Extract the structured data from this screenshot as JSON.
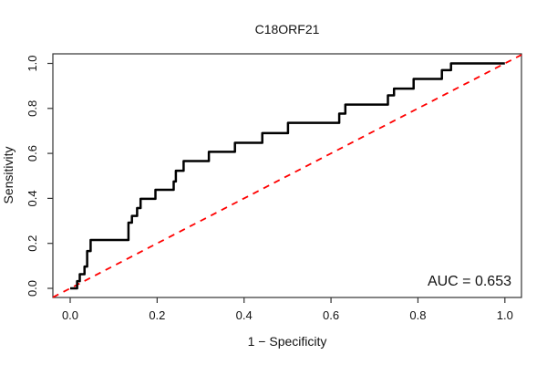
{
  "chart_data": {
    "type": "line",
    "subtype": "roc-step-curve",
    "title": "C18ORF21",
    "xlabel": "1 − Specificity",
    "ylabel": "Sensitivity",
    "xlim": [
      0,
      1
    ],
    "ylim": [
      0,
      1
    ],
    "grid": false,
    "legend": "none",
    "x_ticks": [
      0.0,
      0.2,
      0.4,
      0.6,
      0.8,
      1.0
    ],
    "y_ticks": [
      0.0,
      0.2,
      0.4,
      0.6,
      0.8,
      1.0
    ],
    "tick_format_decimals": 1,
    "auc": 0.653,
    "auc_label": "AUC = 0.653",
    "colors": {
      "roc_curve": "#000000",
      "chance_diagonal": "#ff0000",
      "plot_border": "#333333",
      "text": "#111111"
    },
    "diagonal": {
      "from": [
        0,
        0
      ],
      "to": [
        1,
        1
      ],
      "style": "dashed"
    },
    "series": [
      {
        "name": "ROC curve",
        "points": [
          [
            0.0,
            0.0
          ],
          [
            0.016,
            0.0
          ],
          [
            0.016,
            0.032
          ],
          [
            0.022,
            0.032
          ],
          [
            0.022,
            0.063
          ],
          [
            0.033,
            0.063
          ],
          [
            0.033,
            0.097
          ],
          [
            0.039,
            0.097
          ],
          [
            0.039,
            0.166
          ],
          [
            0.047,
            0.166
          ],
          [
            0.047,
            0.215
          ],
          [
            0.134,
            0.215
          ],
          [
            0.134,
            0.292
          ],
          [
            0.142,
            0.292
          ],
          [
            0.142,
            0.322
          ],
          [
            0.154,
            0.322
          ],
          [
            0.154,
            0.357
          ],
          [
            0.162,
            0.357
          ],
          [
            0.162,
            0.398
          ],
          [
            0.196,
            0.398
          ],
          [
            0.196,
            0.438
          ],
          [
            0.238,
            0.438
          ],
          [
            0.238,
            0.475
          ],
          [
            0.243,
            0.475
          ],
          [
            0.243,
            0.523
          ],
          [
            0.261,
            0.523
          ],
          [
            0.261,
            0.566
          ],
          [
            0.319,
            0.566
          ],
          [
            0.319,
            0.607
          ],
          [
            0.379,
            0.607
          ],
          [
            0.379,
            0.647
          ],
          [
            0.442,
            0.647
          ],
          [
            0.442,
            0.69
          ],
          [
            0.501,
            0.69
          ],
          [
            0.501,
            0.736
          ],
          [
            0.619,
            0.736
          ],
          [
            0.619,
            0.777
          ],
          [
            0.633,
            0.777
          ],
          [
            0.633,
            0.817
          ],
          [
            0.731,
            0.817
          ],
          [
            0.731,
            0.858
          ],
          [
            0.745,
            0.858
          ],
          [
            0.745,
            0.888
          ],
          [
            0.79,
            0.888
          ],
          [
            0.79,
            0.931
          ],
          [
            0.855,
            0.931
          ],
          [
            0.855,
            0.97
          ],
          [
            0.876,
            0.97
          ],
          [
            0.876,
            1.0
          ],
          [
            1.0,
            1.0
          ]
        ]
      }
    ]
  }
}
